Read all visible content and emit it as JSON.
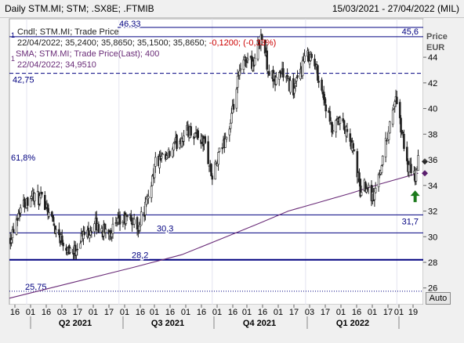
{
  "header": {
    "title": "Daily STM.MI; STM; .SX8E; .FTMIB",
    "date_range": "15/03/2021 - 27/04/2022 (MIL)"
  },
  "legend": {
    "candle_label": "Cndl; STM.MI; Trade Price",
    "candle_values": "22/04/2022; 35,2400; 35,8650; 35,1500; 35,8650;",
    "candle_change": "-0,1200; (-0,33%)",
    "sma_label": "SMA; STM.MI; Trade Price(Last);  400",
    "sma_values": "22/04/2022; 34,9510",
    "marker_1": "1",
    "marker_2": "1"
  },
  "controls": {
    "auto_label": "Auto"
  },
  "colors": {
    "candles": "#222222",
    "sma": "#6a2c78",
    "levels": "#000080",
    "current_marker": "#2a2a2a",
    "sma_marker": "#5a1e6e",
    "arrow": "#1c7a1c",
    "change_negative": "#cc0000"
  },
  "chart_data": {
    "type": "candlestick",
    "y_axis": {
      "label": "Price",
      "unit": "EUR",
      "range": [
        24.7,
        47.0
      ],
      "ticks": [
        26,
        28,
        30,
        32,
        34,
        36,
        38,
        40,
        42,
        44
      ]
    },
    "x_axis": {
      "range": [
        "2021-03-15",
        "2022-04-27"
      ],
      "day_ticks": [
        "16",
        "01",
        "16",
        "03",
        "17",
        "01",
        "17",
        "01",
        "16",
        "01",
        "16",
        "01",
        "16",
        "01",
        "16",
        "01",
        "16",
        "01",
        "17",
        "03",
        "17",
        "01",
        "16",
        "01",
        "17",
        "01",
        "19"
      ],
      "quarter_labels": [
        "Q2 2021",
        "Q3 2021",
        "Q4 2021",
        "Q1 2022"
      ]
    },
    "horizontal_levels": [
      {
        "label": "46,33",
        "value": 46.33,
        "style": "solid"
      },
      {
        "label": "45,6",
        "value": 45.6,
        "style": "solid"
      },
      {
        "label": "42,75",
        "value": 42.75,
        "style": "dashed"
      },
      {
        "label": "31,7",
        "value": 31.7,
        "style": "solid"
      },
      {
        "label": "30,3",
        "value": 30.3,
        "style": "solid"
      },
      {
        "label": "28,2",
        "value": 28.2,
        "style": "solid"
      },
      {
        "label": "25,75",
        "value": 25.75,
        "style": "dotted"
      }
    ],
    "retracement_label": "61,8%",
    "last_close": 35.865,
    "last_sma": 34.951,
    "price_path": [
      [
        "2021-03-16",
        30.0
      ],
      [
        "2021-03-25",
        32.2
      ],
      [
        "2021-04-06",
        33.3
      ],
      [
        "2021-04-20",
        32.6
      ],
      [
        "2021-04-30",
        30.5
      ],
      [
        "2021-05-11",
        29.2
      ],
      [
        "2021-05-18",
        28.8
      ],
      [
        "2021-05-25",
        30.0
      ],
      [
        "2021-06-08",
        30.9
      ],
      [
        "2021-06-16",
        30.4
      ],
      [
        "2021-06-24",
        30.6
      ],
      [
        "2021-07-06",
        31.3
      ],
      [
        "2021-07-12",
        31.4
      ],
      [
        "2021-07-19",
        30.7
      ],
      [
        "2021-07-28",
        32.5
      ],
      [
        "2021-08-06",
        35.8
      ],
      [
        "2021-08-17",
        36.0
      ],
      [
        "2021-08-26",
        37.2
      ],
      [
        "2021-09-07",
        38.3
      ],
      [
        "2021-09-16",
        38.0
      ],
      [
        "2021-09-24",
        37.2
      ],
      [
        "2021-10-01",
        34.5
      ],
      [
        "2021-10-08",
        36.4
      ],
      [
        "2021-10-19",
        38.7
      ],
      [
        "2021-10-27",
        42.5
      ],
      [
        "2021-11-04",
        44.0
      ],
      [
        "2021-11-11",
        43.5
      ],
      [
        "2021-11-18",
        45.8
      ],
      [
        "2021-11-26",
        42.8
      ],
      [
        "2021-12-02",
        42.1
      ],
      [
        "2021-12-08",
        43.0
      ],
      [
        "2021-12-15",
        42.0
      ],
      [
        "2021-12-21",
        41.4
      ],
      [
        "2021-12-30",
        43.7
      ],
      [
        "2022-01-05",
        44.2
      ],
      [
        "2022-01-12",
        43.0
      ],
      [
        "2022-01-20",
        40.5
      ],
      [
        "2022-01-27",
        38.2
      ],
      [
        "2022-02-04",
        39.0
      ],
      [
        "2022-02-11",
        38.0
      ],
      [
        "2022-02-18",
        36.5
      ],
      [
        "2022-02-24",
        33.5
      ],
      [
        "2022-03-02",
        34.2
      ],
      [
        "2022-03-09",
        33.0
      ],
      [
        "2022-03-16",
        35.5
      ],
      [
        "2022-03-23",
        38.0
      ],
      [
        "2022-03-30",
        40.8
      ],
      [
        "2022-04-05",
        38.5
      ],
      [
        "2022-04-12",
        35.4
      ],
      [
        "2022-04-19",
        34.6
      ],
      [
        "2022-04-22",
        35.865
      ]
    ],
    "sma_path": [
      [
        "2021-03-15",
        25.2
      ],
      [
        "2021-05-15",
        26.4
      ],
      [
        "2021-07-15",
        27.6
      ],
      [
        "2021-09-01",
        28.6
      ],
      [
        "2021-10-15",
        30.0
      ],
      [
        "2021-11-15",
        31.0
      ],
      [
        "2021-12-15",
        32.0
      ],
      [
        "2022-01-15",
        32.7
      ],
      [
        "2022-02-15",
        33.4
      ],
      [
        "2022-03-15",
        34.1
      ],
      [
        "2022-04-22",
        34.95
      ]
    ]
  }
}
